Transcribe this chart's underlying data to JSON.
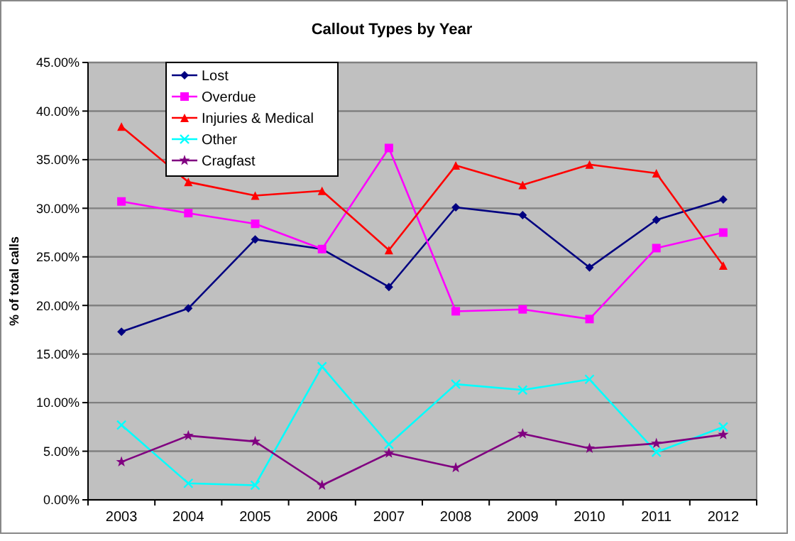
{
  "chart_data": {
    "type": "line",
    "title": "Callout Types by Year",
    "ylabel": "% of total calls",
    "categories": [
      "2003",
      "2004",
      "2005",
      "2006",
      "2007",
      "2008",
      "2009",
      "2010",
      "2011",
      "2012"
    ],
    "series": [
      {
        "name": "Lost",
        "color": "#000080",
        "marker": "diamond",
        "values": [
          17.3,
          19.7,
          26.8,
          25.8,
          21.9,
          30.1,
          29.3,
          23.9,
          28.8,
          30.9
        ]
      },
      {
        "name": "Overdue",
        "color": "#ff00ff",
        "marker": "square",
        "values": [
          30.7,
          29.5,
          28.4,
          25.8,
          36.2,
          19.4,
          19.6,
          18.6,
          25.9,
          27.5
        ]
      },
      {
        "name": "Injuries & Medical",
        "color": "#ff0000",
        "marker": "triangle",
        "values": [
          38.4,
          32.7,
          31.3,
          31.8,
          25.7,
          34.4,
          32.4,
          34.5,
          33.6,
          24.1
        ]
      },
      {
        "name": "Other",
        "color": "#00ffff",
        "marker": "cross",
        "values": [
          7.7,
          1.7,
          1.5,
          13.7,
          5.7,
          11.9,
          11.3,
          12.4,
          4.9,
          7.5
        ]
      },
      {
        "name": "Cragfast",
        "color": "#800080",
        "marker": "star",
        "values": [
          3.9,
          6.6,
          6.0,
          1.5,
          4.8,
          3.3,
          6.8,
          5.3,
          5.8,
          6.7
        ]
      }
    ],
    "ylim": [
      0,
      45
    ],
    "yticks": [
      {
        "value": 0,
        "label": "0.00%"
      },
      {
        "value": 5,
        "label": "5.00%"
      },
      {
        "value": 10,
        "label": "10.00%"
      },
      {
        "value": 15,
        "label": "15.00%"
      },
      {
        "value": 20,
        "label": "20.00%"
      },
      {
        "value": 25,
        "label": "25.00%"
      },
      {
        "value": 30,
        "label": "30.00%"
      },
      {
        "value": 35,
        "label": "35.00%"
      },
      {
        "value": 40,
        "label": "40.00%"
      },
      {
        "value": 45,
        "label": "45.00%"
      }
    ],
    "grid": "y",
    "legend": "top left"
  }
}
